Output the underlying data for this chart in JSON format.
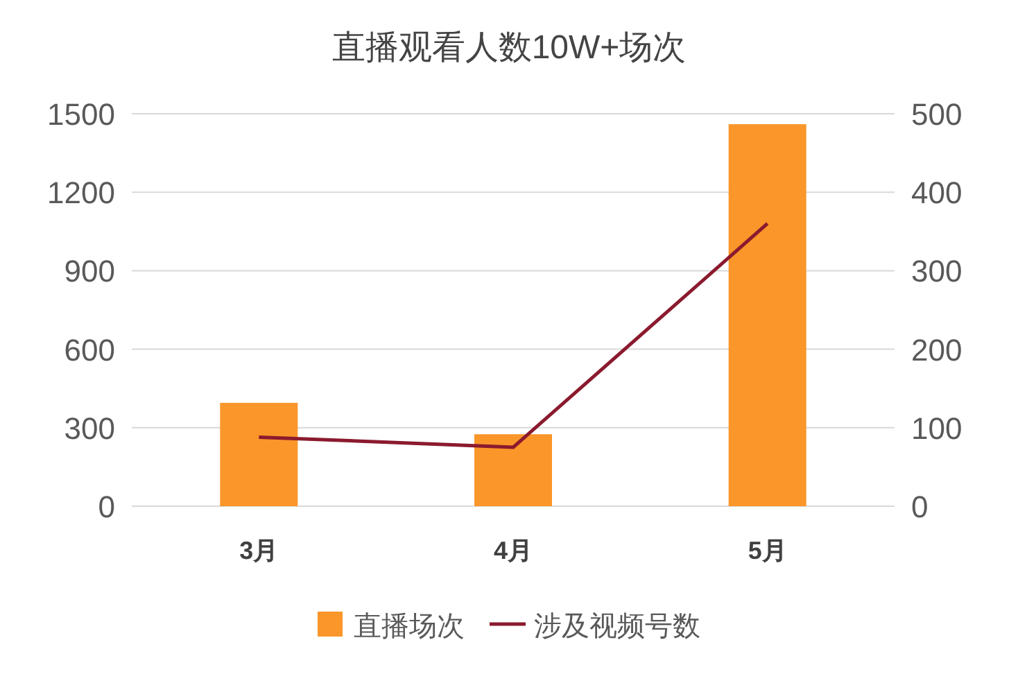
{
  "chart_data": {
    "type": "bar",
    "title": "直播观看人数10W+场次",
    "categories": [
      "3月",
      "4月",
      "5月"
    ],
    "series": [
      {
        "name": "直播场次",
        "color": "#fa962a",
        "values": [
          395,
          275,
          1460
        ]
      },
      {
        "name": "涉及视频号数",
        "type": "line",
        "axis": "y2",
        "color": "#8b1a2e",
        "values": [
          88,
          75,
          360
        ]
      }
    ],
    "ylim": [
      0,
      1500
    ],
    "yticks": [
      0,
      300,
      600,
      900,
      1200,
      1500
    ],
    "y2lim": [
      0,
      500
    ],
    "y2ticks": [
      0,
      100,
      200,
      300,
      400,
      500
    ],
    "grid": "y",
    "legend": "bottom"
  }
}
